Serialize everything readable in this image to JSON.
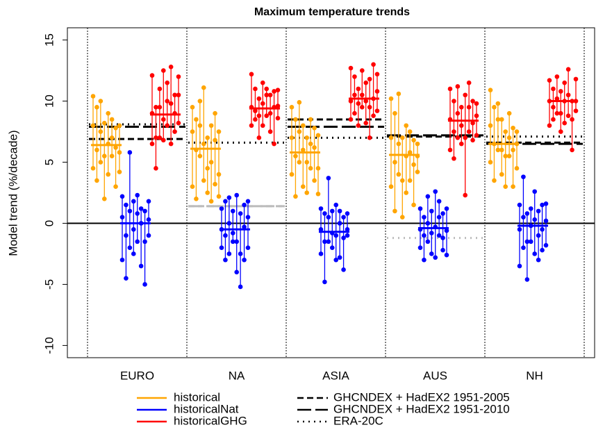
{
  "chart_data": {
    "type": "range_dot",
    "title": "Maximum temperature trends",
    "y_label": "Model trend (%/decade)",
    "categories": [
      "EURO",
      "NA",
      "ASIA",
      "AUS",
      "NH"
    ],
    "ylim": [
      -11,
      16
    ],
    "yticks": [
      -10,
      -5,
      0,
      5,
      10,
      15
    ],
    "zero_line": true,
    "series": [
      {
        "name": "historical",
        "color": "#ffa500",
        "means": [
          6.4,
          6.1,
          5.8,
          5.6,
          6.5
        ],
        "models": [
          [
            [
              4.5,
              8.0,
              10.4
            ],
            [
              3.5,
              6.0,
              9.5
            ],
            [
              5.0,
              7.5,
              10.0
            ],
            [
              2.0,
              5.5,
              8.2
            ],
            [
              4.0,
              6.5,
              9.0
            ],
            [
              5.5,
              7.0,
              8.5
            ],
            [
              3.0,
              6.2,
              7.8
            ],
            [
              4.2,
              5.8,
              8.0
            ]
          ],
          [
            [
              3.0,
              7.5,
              9.5
            ],
            [
              2.0,
              6.0,
              8.5
            ],
            [
              5.5,
              8.0,
              10.0
            ],
            [
              3.5,
              6.5,
              11.1
            ],
            [
              2.5,
              4.5,
              7.0
            ],
            [
              1.8,
              5.0,
              8.0
            ],
            [
              3.2,
              6.8,
              9.0
            ],
            [
              2.2,
              4.0,
              7.5
            ]
          ],
          [
            [
              4.0,
              7.0,
              9.5
            ],
            [
              2.2,
              5.5,
              8.5
            ],
            [
              5.0,
              7.5,
              9.9
            ],
            [
              3.0,
              6.0,
              8.0
            ],
            [
              2.5,
              5.0,
              7.0
            ],
            [
              4.5,
              6.5,
              8.5
            ],
            [
              3.5,
              6.2,
              7.8
            ],
            [
              2.4,
              4.5,
              7.2
            ]
          ],
          [
            [
              3.0,
              7.0,
              10.2
            ],
            [
              1.0,
              5.0,
              9.0
            ],
            [
              4.0,
              6.5,
              10.6
            ],
            [
              0.5,
              3.5,
              7.0
            ],
            [
              2.5,
              5.5,
              8.0
            ],
            [
              3.5,
              5.8,
              7.5
            ],
            [
              1.5,
              4.8,
              6.8
            ],
            [
              4.2,
              5.5,
              6.5
            ]
          ],
          [
            [
              5.0,
              8.0,
              10.9
            ],
            [
              3.5,
              6.5,
              9.5
            ],
            [
              6.0,
              8.5,
              9.8
            ],
            [
              4.0,
              6.0,
              8.5
            ],
            [
              3.0,
              5.5,
              7.5
            ],
            [
              5.5,
              7.0,
              9.0
            ],
            [
              3.0,
              6.0,
              7.8
            ],
            [
              4.5,
              6.5,
              7.5
            ]
          ]
        ]
      },
      {
        "name": "historicalNat",
        "color": "#0000ff",
        "means": [
          0.0,
          -0.5,
          -0.7,
          -0.4,
          -0.2
        ],
        "models": [
          [
            [
              -3.0,
              0.5,
              2.2
            ],
            [
              -4.5,
              -1.0,
              1.5
            ],
            [
              -2.0,
              1.0,
              5.8
            ],
            [
              -2.5,
              -0.5,
              1.8
            ],
            [
              -1.5,
              0.8,
              2.3
            ],
            [
              -3.5,
              0.0,
              1.2
            ],
            [
              -5.0,
              -1.5,
              1.0
            ],
            [
              -1.0,
              0.3,
              1.8
            ]
          ],
          [
            [
              -2.0,
              -0.5,
              1.2
            ],
            [
              -3.0,
              -1.0,
              1.8
            ],
            [
              -2.5,
              0.0,
              2.1
            ],
            [
              -1.5,
              -0.8,
              1.0
            ],
            [
              -4.0,
              -1.5,
              2.3
            ],
            [
              -5.2,
              -2.5,
              0.8
            ],
            [
              -3.0,
              -0.3,
              1.5
            ],
            [
              -2.0,
              0.5,
              1.8
            ]
          ],
          [
            [
              -2.5,
              -0.5,
              1.2
            ],
            [
              -4.8,
              -1.5,
              0.8
            ],
            [
              -1.5,
              0.5,
              3.7
            ],
            [
              -2.0,
              -0.8,
              1.0
            ],
            [
              -3.0,
              -1.0,
              1.5
            ],
            [
              -2.8,
              0.0,
              1.0
            ],
            [
              -3.8,
              -1.2,
              0.5
            ],
            [
              -1.0,
              -0.5,
              0.8
            ]
          ],
          [
            [
              -2.0,
              -0.5,
              1.2
            ],
            [
              -3.0,
              -1.0,
              0.5
            ],
            [
              -1.5,
              0.0,
              2.2
            ],
            [
              -2.5,
              -0.8,
              1.0
            ],
            [
              -2.8,
              -0.3,
              2.6
            ],
            [
              -1.0,
              0.5,
              1.8
            ],
            [
              -2.2,
              -1.2,
              0.8
            ],
            [
              -2.6,
              -0.6,
              1.2
            ]
          ],
          [
            [
              -3.5,
              -0.5,
              1.5
            ],
            [
              -2.0,
              0.5,
              3.8
            ],
            [
              -4.6,
              -1.5,
              0.8
            ],
            [
              -1.5,
              -0.2,
              1.2
            ],
            [
              -2.5,
              0.3,
              2.6
            ],
            [
              -3.0,
              -1.0,
              1.0
            ],
            [
              -2.2,
              -0.5,
              1.5
            ],
            [
              -1.8,
              0.2,
              1.6
            ]
          ]
        ]
      },
      {
        "name": "historicalGHG",
        "color": "#ff0000",
        "means": [
          8.9,
          9.4,
          10.2,
          8.4,
          10.0
        ],
        "models": [
          [
            [
              6.5,
              9.0,
              12.1
            ],
            [
              4.5,
              7.0,
              9.5
            ],
            [
              7.0,
              9.5,
              11.0
            ],
            [
              6.8,
              8.5,
              12.5
            ],
            [
              8.0,
              10.0,
              11.5
            ],
            [
              6.5,
              9.8,
              12.8
            ],
            [
              7.5,
              9.0,
              10.5
            ],
            [
              8.2,
              10.5,
              12.0
            ]
          ],
          [
            [
              8.0,
              9.5,
              12.2
            ],
            [
              8.5,
              9.2,
              11.0
            ],
            [
              7.0,
              8.8,
              10.2
            ],
            [
              8.0,
              9.8,
              11.5
            ],
            [
              8.8,
              10.5,
              11.0
            ],
            [
              7.5,
              9.0,
              10.5
            ],
            [
              6.5,
              9.5,
              10.8
            ],
            [
              8.6,
              9.6,
              10.9
            ]
          ],
          [
            [
              8.5,
              10.0,
              12.7
            ],
            [
              9.0,
              10.5,
              12.0
            ],
            [
              8.0,
              9.8,
              11.0
            ],
            [
              9.5,
              10.5,
              12.5
            ],
            [
              8.2,
              10.0,
              11.5
            ],
            [
              7.0,
              9.5,
              11.8
            ],
            [
              8.8,
              10.2,
              13.0
            ],
            [
              9.2,
              10.8,
              12.2
            ]
          ],
          [
            [
              6.0,
              8.5,
              11.0
            ],
            [
              5.3,
              7.5,
              10.0
            ],
            [
              7.0,
              9.0,
              11.2
            ],
            [
              6.5,
              8.0,
              9.5
            ],
            [
              2.3,
              7.0,
              10.5
            ],
            [
              7.5,
              9.5,
              11.5
            ],
            [
              6.8,
              8.2,
              10.0
            ],
            [
              7.2,
              8.8,
              9.8
            ]
          ],
          [
            [
              8.0,
              10.0,
              11.7
            ],
            [
              8.5,
              9.5,
              11.0
            ],
            [
              9.0,
              10.2,
              12.0
            ],
            [
              7.5,
              9.0,
              10.8
            ],
            [
              8.2,
              10.0,
              11.5
            ],
            [
              8.8,
              10.5,
              12.6
            ],
            [
              6.0,
              8.5,
              10.0
            ],
            [
              9.2,
              10.0,
              11.8
            ]
          ]
        ]
      }
    ],
    "observations": [
      {
        "name": "GHCNDEX + HadEX2 1951-2005",
        "linestyle": "dashed",
        "values": [
          6.9,
          1.4,
          8.5,
          7.1,
          6.6
        ],
        "colors": [
          "#000000",
          "#bbbbbb",
          "#000000",
          "#000000",
          "#000000"
        ]
      },
      {
        "name": "GHCNDEX + HadEX2 1951-2010",
        "linestyle": "longdash",
        "values": [
          7.9,
          1.4,
          7.9,
          7.2,
          6.5
        ],
        "colors": [
          "#000000",
          "#bbbbbb",
          "#000000",
          "#000000",
          "#000000"
        ]
      },
      {
        "name": "ERA-20C",
        "linestyle": "dotted",
        "values": [
          8.1,
          6.6,
          7.0,
          -1.2,
          7.1
        ],
        "colors": [
          "#000000",
          "#000000",
          "#000000",
          "#bbbbbb",
          "#000000"
        ]
      }
    ]
  }
}
